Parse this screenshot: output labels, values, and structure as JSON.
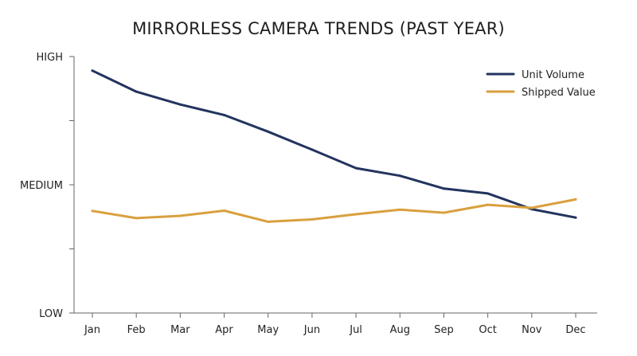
{
  "chart_data": {
    "type": "line",
    "title": "MIRRORLESS CAMERA TRENDS (PAST YEAR)",
    "xlabel": "",
    "ylabel": "",
    "categories": [
      "Jan",
      "Feb",
      "Mar",
      "Apr",
      "May",
      "Jun",
      "Jul",
      "Aug",
      "Sep",
      "Oct",
      "Nov",
      "Dec"
    ],
    "y_tick_labels": [
      {
        "label": "HIGH",
        "value": 100
      },
      {
        "label": "MEDIUM",
        "value": 50
      },
      {
        "label": "LOW",
        "value": 0
      }
    ],
    "y_minor_tick_values": [
      75,
      25
    ],
    "ylim": [
      0,
      100
    ],
    "grid": false,
    "legend_position": "top-right",
    "series": [
      {
        "name": "Unit Volume",
        "color": "#22345e",
        "values": [
          94.5,
          86.3,
          81.3,
          77.2,
          70.7,
          63.7,
          56.5,
          53.5,
          48.5,
          46.6,
          40.5,
          37.2
        ]
      },
      {
        "name": "Shipped Value",
        "color": "#d9a03f",
        "values": [
          39.8,
          37.0,
          37.9,
          39.9,
          35.6,
          36.5,
          38.5,
          40.3,
          39.1,
          42.2,
          41.0,
          44.3
        ]
      }
    ]
  }
}
